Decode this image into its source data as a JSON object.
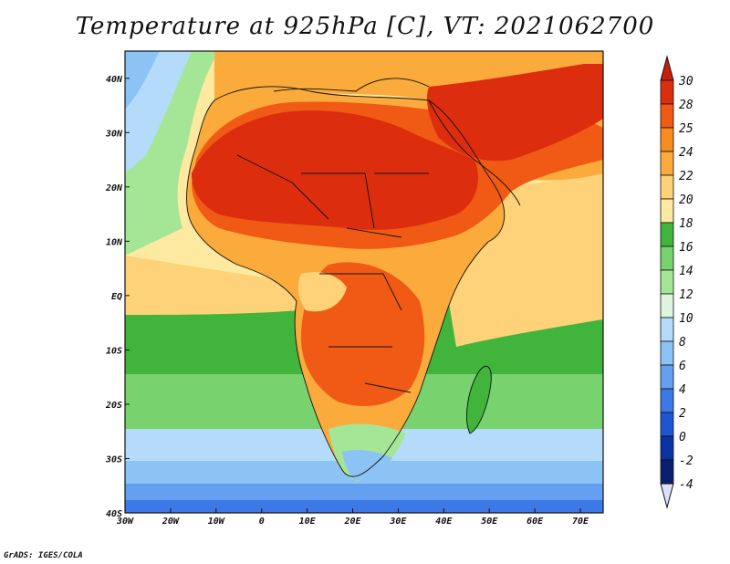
{
  "title": "Temperature at 925hPa [C], VT: 2021062700",
  "footer": "GrADS: IGES/COLA",
  "map": {
    "lon_range": [
      -30,
      75
    ],
    "lat_range": [
      -40,
      45
    ],
    "x_ticks": [
      "30W",
      "20W",
      "10W",
      "0",
      "10E",
      "20E",
      "30E",
      "40E",
      "50E",
      "60E",
      "70E"
    ],
    "y_ticks": [
      "40N",
      "30N",
      "20N",
      "10N",
      "EQ",
      "10S",
      "20S",
      "30S",
      "40S"
    ]
  },
  "colorbar": {
    "labels": [
      "30",
      "28",
      "25",
      "24",
      "22",
      "20",
      "18",
      "16",
      "14",
      "12",
      "10",
      "8",
      "6",
      "4",
      "2",
      "0",
      "-2",
      "-4"
    ],
    "colors": [
      "#dc2d0f",
      "#f05a14",
      "#f88c1e",
      "#fbaa3c",
      "#fdd278",
      "#fee9a0",
      "#41b43c",
      "#78d26e",
      "#a5e696",
      "#dcf5dc",
      "#b4dcfa",
      "#8cc3f5",
      "#649ff0",
      "#3c78e6",
      "#1e55d2",
      "#0a32a0",
      "#0a1e6e"
    ],
    "top_color": "#c81e0a",
    "bottom_color": "#dce0f8"
  }
}
